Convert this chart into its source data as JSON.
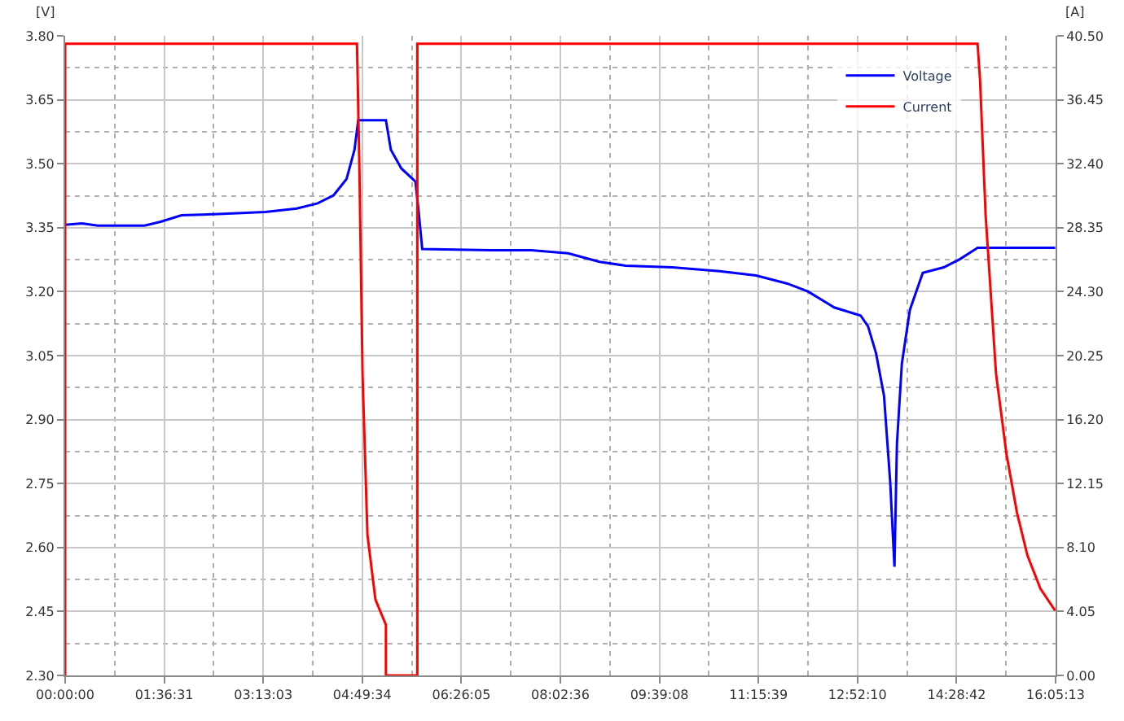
{
  "chart_data": {
    "type": "line",
    "ylabel": "[V]",
    "y2label": "[A]",
    "series": [
      {
        "name": "Voltage",
        "color": "#0000ff",
        "x": [
          0,
          0.27,
          0.53,
          1.29,
          1.55,
          1.89,
          2.49,
          3.25,
          3.76,
          4.1,
          4.36,
          4.57,
          4.7,
          4.76,
          5.21,
          5.29,
          5.46,
          5.69,
          5.74,
          5.8,
          6.91,
          7.57,
          8.17,
          8.68,
          9.1,
          9.86,
          10.63,
          11.22,
          11.73,
          12.07,
          12.49,
          12.92,
          13.04,
          13.17,
          13.3,
          13.4,
          13.47,
          13.51,
          13.59,
          13.72,
          13.93,
          14.27,
          14.53,
          14.82,
          16.08
        ],
        "values": [
          3.357,
          3.36,
          3.355,
          3.355,
          3.364,
          3.379,
          3.382,
          3.387,
          3.395,
          3.407,
          3.426,
          3.464,
          3.533,
          3.602,
          3.602,
          3.533,
          3.489,
          3.458,
          3.39,
          3.3,
          3.297,
          3.297,
          3.29,
          3.27,
          3.261,
          3.257,
          3.248,
          3.238,
          3.219,
          3.2,
          3.163,
          3.144,
          3.119,
          3.056,
          2.956,
          2.755,
          2.555,
          2.843,
          3.031,
          3.157,
          3.244,
          3.257,
          3.276,
          3.303,
          3.303
        ]
      },
      {
        "name": "Current",
        "color": "#ff0000",
        "axis": "y2",
        "x": [
          0,
          0,
          4.74,
          4.78,
          4.83,
          4.91,
          5.04,
          5.21,
          5.21,
          5.72,
          5.72,
          14.82,
          14.86,
          14.95,
          15.12,
          15.29,
          15.46,
          15.63,
          15.84,
          16.08
        ],
        "values": [
          0,
          40.0,
          40.0,
          31.9,
          19.1,
          8.9,
          4.8,
          3.2,
          0,
          0,
          40.0,
          40.0,
          37.7,
          29.2,
          19.1,
          14.0,
          10.3,
          7.6,
          5.5,
          4.1
        ]
      }
    ],
    "xlim": [
      0,
      16.08694
    ],
    "xticks": [
      {
        "value": 0,
        "label": "00:00:00"
      },
      {
        "value": 1.60861,
        "label": "01:36:31"
      },
      {
        "value": 3.2175,
        "label": "03:13:03"
      },
      {
        "value": 4.82611,
        "label": "04:49:34"
      },
      {
        "value": 6.43472,
        "label": "06:26:05"
      },
      {
        "value": 8.04333,
        "label": "08:02:36"
      },
      {
        "value": 9.65222,
        "label": "09:39:08"
      },
      {
        "value": 11.26083,
        "label": "11:15:39"
      },
      {
        "value": 12.86944,
        "label": "12:52:10"
      },
      {
        "value": 14.47833,
        "label": "14:28:42"
      },
      {
        "value": 16.08694,
        "label": "16:05:13"
      }
    ],
    "ylim": [
      2.3,
      3.8
    ],
    "yticks": [
      {
        "value": 2.3,
        "label": "2.30"
      },
      {
        "value": 2.45,
        "label": "2.45"
      },
      {
        "value": 2.6,
        "label": "2.60"
      },
      {
        "value": 2.75,
        "label": "2.75"
      },
      {
        "value": 2.9,
        "label": "2.90"
      },
      {
        "value": 3.05,
        "label": "3.05"
      },
      {
        "value": 3.2,
        "label": "3.20"
      },
      {
        "value": 3.35,
        "label": "3.35"
      },
      {
        "value": 3.5,
        "label": "3.50"
      },
      {
        "value": 3.65,
        "label": "3.65"
      },
      {
        "value": 3.8,
        "label": "3.80"
      }
    ],
    "y2lim": [
      0,
      40.5
    ],
    "y2ticks": [
      {
        "value": 0,
        "label": "0.00"
      },
      {
        "value": 4.05,
        "label": "4.05"
      },
      {
        "value": 8.1,
        "label": "8.10"
      },
      {
        "value": 12.15,
        "label": "12.15"
      },
      {
        "value": 16.2,
        "label": "16.20"
      },
      {
        "value": 20.25,
        "label": "20.25"
      },
      {
        "value": 24.3,
        "label": "24.30"
      },
      {
        "value": 28.35,
        "label": "28.35"
      },
      {
        "value": 32.4,
        "label": "32.40"
      },
      {
        "value": 36.45,
        "label": "36.45"
      },
      {
        "value": 40.5,
        "label": "40.50"
      }
    ],
    "grid": true,
    "legend": "top right",
    "marker": "none",
    "line_style": "solid"
  }
}
